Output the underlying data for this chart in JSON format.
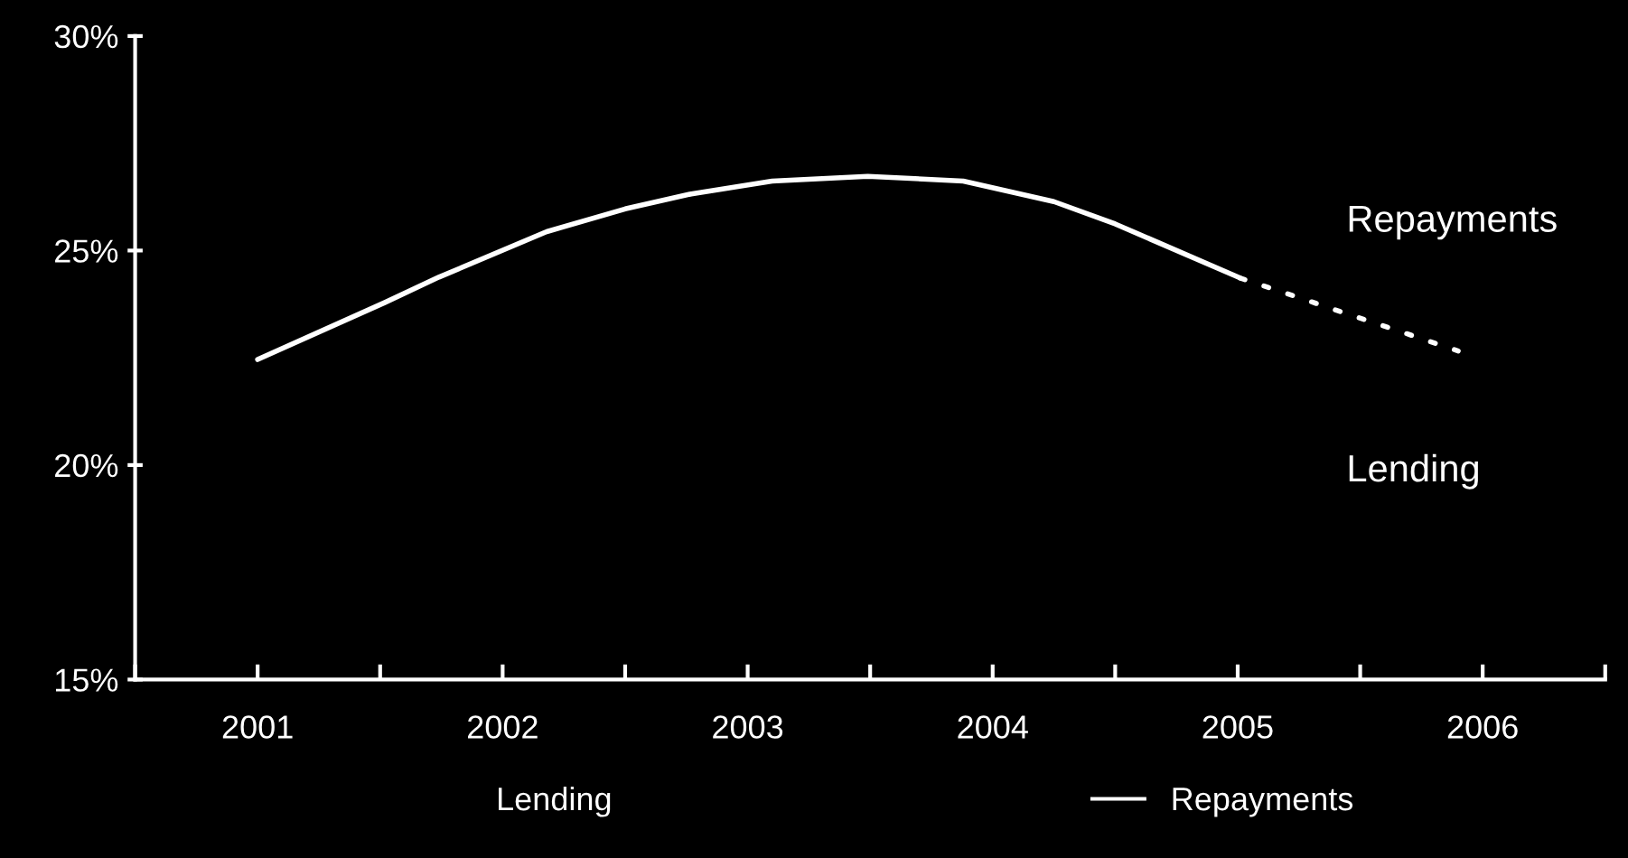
{
  "chart_data": {
    "type": "line",
    "series": [
      {
        "name": "Repayments",
        "color": "#ffffff",
        "line_style": "solid",
        "x": [
          2001,
          2001.52,
          2001.74,
          2002.18,
          2002.5,
          2002.77,
          2003.1,
          2003.49,
          2003.88,
          2004.25,
          2004.5,
          2005.01
        ],
        "values": [
          22.46,
          23.79,
          24.38,
          25.44,
          25.97,
          26.32,
          26.62,
          26.73,
          26.62,
          26.14,
          25.62,
          24.36
        ]
      },
      {
        "color": "#ffffff",
        "line_style": "dotted",
        "x": [
          2005.01,
          2005.9
        ],
        "values": [
          24.36,
          22.66
        ]
      }
    ],
    "xlim": [
      2000.5,
      2006.5
    ],
    "xticks": [
      {
        "value": 2000.5,
        "label": null
      },
      {
        "value": 2001,
        "label": "2001"
      },
      {
        "value": 2001.5,
        "label": null
      },
      {
        "value": 2002,
        "label": "2002"
      },
      {
        "value": 2002.5,
        "label": null
      },
      {
        "value": 2003,
        "label": "2003"
      },
      {
        "value": 2003.5,
        "label": null
      },
      {
        "value": 2004,
        "label": "2004"
      },
      {
        "value": 2004.5,
        "label": null
      },
      {
        "value": 2005,
        "label": "2005"
      },
      {
        "value": 2005.5,
        "label": null
      },
      {
        "value": 2006,
        "label": "2006"
      },
      {
        "value": 2006.5,
        "label": null
      }
    ],
    "ylim": [
      15,
      30
    ],
    "yticks": [
      {
        "value": 15,
        "label": "15%"
      },
      {
        "value": 20,
        "label": "20%"
      },
      {
        "value": 25,
        "label": "25%"
      },
      {
        "value": 30,
        "label": "30%"
      }
    ],
    "annotations": [
      "Repayments",
      "Lending",
      "Lending"
    ],
    "grid": false,
    "legend": "bottom",
    "marker": "none"
  }
}
